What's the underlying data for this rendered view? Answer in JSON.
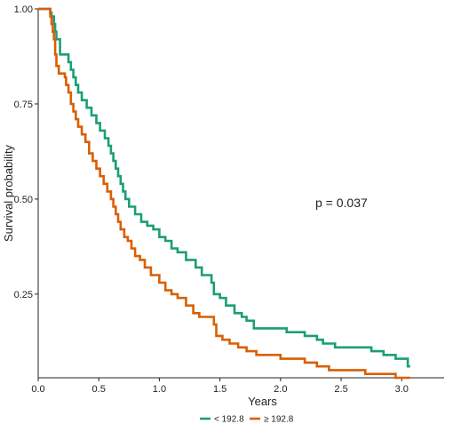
{
  "chart_data": {
    "type": "line",
    "step": true,
    "xlabel": "Years",
    "ylabel": "Survival probability",
    "xlim": [
      0,
      3.35
    ],
    "ylim": [
      0.03,
      1.0
    ],
    "x_ticks": [
      0.0,
      0.5,
      1.0,
      1.5,
      2.0,
      2.5,
      3.0
    ],
    "x_tick_labels": [
      "0.0",
      "0.5",
      "1.0",
      "1.5",
      "2.0",
      "2.5",
      "3.0"
    ],
    "y_ticks": [
      0.25,
      0.5,
      0.75,
      1.0
    ],
    "y_tick_labels": [
      "0.25",
      "0.50",
      "0.75",
      "1.00"
    ],
    "grid": false,
    "legend_position": "bottom",
    "annotation": "p = 0.037",
    "series": [
      {
        "name": "< 192.8",
        "color": "#1b9e77",
        "points": [
          [
            0.0,
            1.0
          ],
          [
            0.09,
            1.0
          ],
          [
            0.1,
            0.99
          ],
          [
            0.11,
            0.98
          ],
          [
            0.13,
            0.96
          ],
          [
            0.14,
            0.94
          ],
          [
            0.15,
            0.92
          ],
          [
            0.18,
            0.88
          ],
          [
            0.23,
            0.88
          ],
          [
            0.25,
            0.86
          ],
          [
            0.27,
            0.84
          ],
          [
            0.29,
            0.82
          ],
          [
            0.31,
            0.8
          ],
          [
            0.33,
            0.78
          ],
          [
            0.36,
            0.76
          ],
          [
            0.4,
            0.74
          ],
          [
            0.44,
            0.72
          ],
          [
            0.48,
            0.7
          ],
          [
            0.51,
            0.68
          ],
          [
            0.55,
            0.66
          ],
          [
            0.58,
            0.64
          ],
          [
            0.6,
            0.62
          ],
          [
            0.62,
            0.6
          ],
          [
            0.64,
            0.58
          ],
          [
            0.66,
            0.56
          ],
          [
            0.68,
            0.54
          ],
          [
            0.7,
            0.52
          ],
          [
            0.72,
            0.5
          ],
          [
            0.75,
            0.48
          ],
          [
            0.8,
            0.46
          ],
          [
            0.85,
            0.44
          ],
          [
            0.9,
            0.43
          ],
          [
            0.95,
            0.42
          ],
          [
            1.0,
            0.4
          ],
          [
            1.05,
            0.39
          ],
          [
            1.1,
            0.37
          ],
          [
            1.15,
            0.36
          ],
          [
            1.22,
            0.34
          ],
          [
            1.3,
            0.32
          ],
          [
            1.35,
            0.3
          ],
          [
            1.43,
            0.28
          ],
          [
            1.45,
            0.25
          ],
          [
            1.5,
            0.24
          ],
          [
            1.55,
            0.22
          ],
          [
            1.62,
            0.2
          ],
          [
            1.68,
            0.19
          ],
          [
            1.72,
            0.18
          ],
          [
            1.78,
            0.16
          ],
          [
            2.0,
            0.16
          ],
          [
            2.05,
            0.15
          ],
          [
            2.2,
            0.14
          ],
          [
            2.3,
            0.13
          ],
          [
            2.35,
            0.12
          ],
          [
            2.45,
            0.11
          ],
          [
            2.6,
            0.11
          ],
          [
            2.75,
            0.1
          ],
          [
            2.85,
            0.09
          ],
          [
            2.95,
            0.08
          ],
          [
            3.05,
            0.06
          ],
          [
            3.07,
            0.06
          ]
        ]
      },
      {
        "name": "≥ 192.8",
        "color": "#d95f02",
        "points": [
          [
            0.0,
            1.0
          ],
          [
            0.09,
            1.0
          ],
          [
            0.1,
            0.98
          ],
          [
            0.11,
            0.96
          ],
          [
            0.12,
            0.94
          ],
          [
            0.13,
            0.92
          ],
          [
            0.14,
            0.88
          ],
          [
            0.15,
            0.85
          ],
          [
            0.17,
            0.83
          ],
          [
            0.22,
            0.82
          ],
          [
            0.23,
            0.8
          ],
          [
            0.25,
            0.78
          ],
          [
            0.27,
            0.75
          ],
          [
            0.29,
            0.73
          ],
          [
            0.31,
            0.71
          ],
          [
            0.33,
            0.69
          ],
          [
            0.36,
            0.67
          ],
          [
            0.39,
            0.65
          ],
          [
            0.42,
            0.62
          ],
          [
            0.45,
            0.6
          ],
          [
            0.48,
            0.58
          ],
          [
            0.51,
            0.56
          ],
          [
            0.54,
            0.54
          ],
          [
            0.57,
            0.52
          ],
          [
            0.6,
            0.5
          ],
          [
            0.62,
            0.48
          ],
          [
            0.64,
            0.46
          ],
          [
            0.66,
            0.44
          ],
          [
            0.68,
            0.42
          ],
          [
            0.71,
            0.4
          ],
          [
            0.74,
            0.39
          ],
          [
            0.77,
            0.37
          ],
          [
            0.8,
            0.35
          ],
          [
            0.84,
            0.34
          ],
          [
            0.88,
            0.32
          ],
          [
            0.93,
            0.3
          ],
          [
            1.0,
            0.28
          ],
          [
            1.05,
            0.26
          ],
          [
            1.1,
            0.25
          ],
          [
            1.15,
            0.24
          ],
          [
            1.22,
            0.22
          ],
          [
            1.28,
            0.2
          ],
          [
            1.33,
            0.19
          ],
          [
            1.45,
            0.17
          ],
          [
            1.47,
            0.14
          ],
          [
            1.52,
            0.13
          ],
          [
            1.58,
            0.12
          ],
          [
            1.65,
            0.11
          ],
          [
            1.72,
            0.1
          ],
          [
            1.8,
            0.09
          ],
          [
            1.95,
            0.09
          ],
          [
            2.0,
            0.08
          ],
          [
            2.2,
            0.07
          ],
          [
            2.3,
            0.06
          ],
          [
            2.4,
            0.05
          ],
          [
            2.6,
            0.05
          ],
          [
            2.7,
            0.04
          ],
          [
            2.85,
            0.04
          ],
          [
            2.95,
            0.03
          ],
          [
            3.07,
            0.03
          ]
        ]
      }
    ]
  }
}
